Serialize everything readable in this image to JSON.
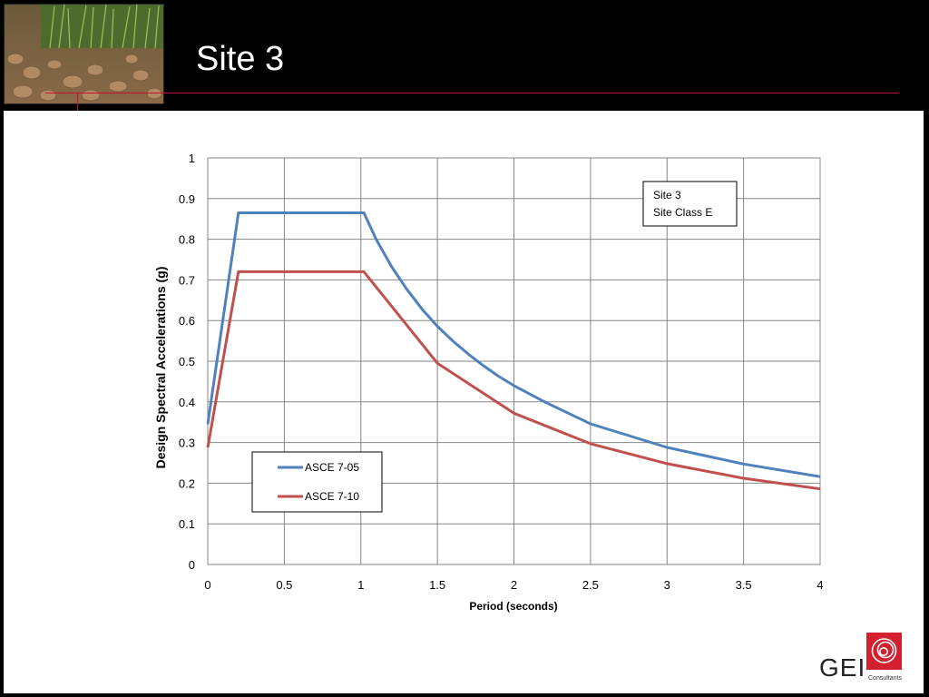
{
  "slide": {
    "title": "Site 3",
    "brand": {
      "name": "GEI",
      "subtitle": "Consultants",
      "color": "#d2202f"
    }
  },
  "chart_data": {
    "type": "line",
    "title": "",
    "xlabel": "Period (seconds)",
    "ylabel": "Design Spectral Accelerations (g)",
    "xlim": [
      0,
      4
    ],
    "ylim": [
      0,
      1
    ],
    "x_ticks": [
      "0",
      "0.5",
      "1",
      "1.5",
      "2",
      "2.5",
      "3",
      "3.5",
      "4"
    ],
    "y_ticks": [
      "0",
      "0.1",
      "0.2",
      "0.3",
      "0.4",
      "0.5",
      "0.6",
      "0.7",
      "0.8",
      "0.9",
      "1"
    ],
    "grid": true,
    "annotation": [
      "Site 3",
      "Site Class E"
    ],
    "legend_position": "lower-left",
    "series": [
      {
        "name": "ASCE 7-05",
        "color": "#4f81bd",
        "x": [
          0,
          0.2,
          1.02,
          1.1,
          1.2,
          1.3,
          1.4,
          1.5,
          1.6,
          1.7,
          1.8,
          1.9,
          2.0,
          2.2,
          2.5,
          3.0,
          3.5,
          4.0
        ],
        "y": [
          0.345,
          0.865,
          0.865,
          0.8,
          0.733,
          0.677,
          0.628,
          0.586,
          0.55,
          0.518,
          0.489,
          0.463,
          0.44,
          0.4,
          0.346,
          0.288,
          0.247,
          0.216
        ]
      },
      {
        "name": "ASCE 7-10",
        "color": "#c0504d",
        "x": [
          0,
          0.2,
          1.02,
          1.5,
          2.0,
          2.5,
          3.0,
          3.5,
          4.0
        ],
        "y": [
          0.288,
          0.72,
          0.72,
          0.495,
          0.372,
          0.297,
          0.248,
          0.212,
          0.186
        ]
      }
    ]
  }
}
